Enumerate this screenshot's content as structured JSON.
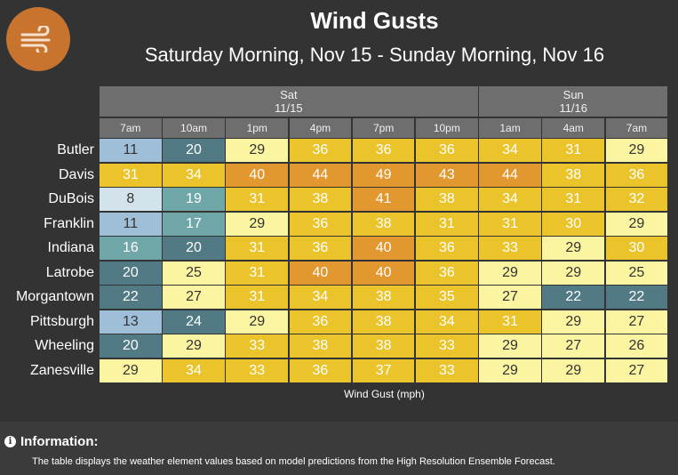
{
  "title": "Wind Gusts",
  "subtitle": "Saturday Morning, Nov 15 - Sunday Morning, Nov 16",
  "logo": {
    "icon": "wind-icon",
    "color": "#c8742f"
  },
  "chart_data": {
    "type": "table",
    "days": [
      {
        "name": "Sat",
        "date": "11/15",
        "span": 6
      },
      {
        "name": "Sun",
        "date": "11/16",
        "span": 3
      }
    ],
    "times": [
      "7am",
      "10am",
      "1pm",
      "4pm",
      "7pm",
      "10pm",
      "1am",
      "4am",
      "7am"
    ],
    "stations": [
      "Butler",
      "Davis",
      "DuBois",
      "Franklin",
      "Indiana",
      "Latrobe",
      "Morgantown",
      "Pittsburgh",
      "Wheeling",
      "Zanesville"
    ],
    "values": [
      [
        11,
        20,
        29,
        36,
        36,
        36,
        34,
        31,
        29
      ],
      [
        31,
        34,
        40,
        44,
        49,
        43,
        44,
        38,
        36
      ],
      [
        8,
        19,
        31,
        38,
        41,
        38,
        34,
        31,
        32
      ],
      [
        11,
        17,
        29,
        36,
        38,
        31,
        31,
        30,
        29
      ],
      [
        16,
        20,
        31,
        36,
        40,
        36,
        33,
        29,
        30
      ],
      [
        20,
        25,
        31,
        40,
        40,
        36,
        29,
        29,
        25
      ],
      [
        22,
        27,
        31,
        34,
        38,
        35,
        27,
        22,
        22
      ],
      [
        13,
        24,
        29,
        36,
        38,
        34,
        31,
        29,
        27
      ],
      [
        20,
        29,
        33,
        38,
        38,
        33,
        29,
        27,
        26
      ],
      [
        29,
        34,
        33,
        36,
        37,
        33,
        29,
        29,
        27
      ]
    ],
    "legend_label": "Wind Gust (mph)"
  },
  "info": {
    "title": "Information:",
    "text": "The table displays the weather element values based on model predictions from the High Resolution Ensemble Forecast."
  }
}
